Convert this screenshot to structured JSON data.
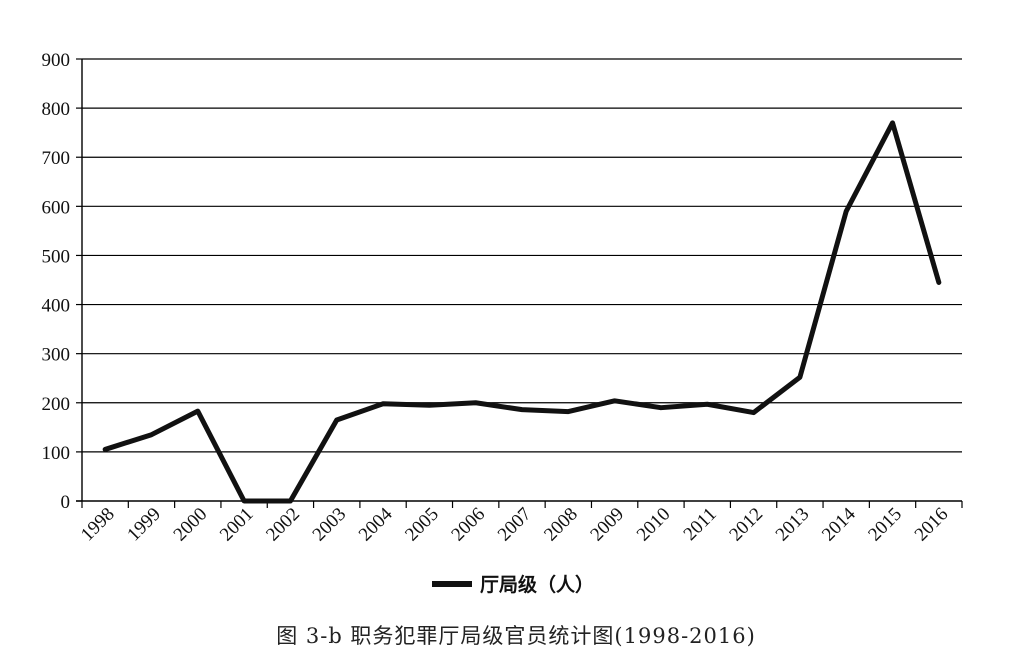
{
  "chart_data": {
    "type": "line",
    "categories": [
      "1998",
      "1999",
      "2000",
      "2001",
      "2002",
      "2003",
      "2004",
      "2005",
      "2006",
      "2007",
      "2008",
      "2009",
      "2010",
      "2011",
      "2012",
      "2013",
      "2014",
      "2015",
      "2016"
    ],
    "series": [
      {
        "name": "厅局级（人）",
        "values": [
          105,
          135,
          183,
          0,
          0,
          165,
          198,
          195,
          200,
          186,
          182,
          204,
          190,
          197,
          180,
          252,
          590,
          770,
          445
        ]
      }
    ],
    "yticks": [
      "0",
      "100",
      "200",
      "300",
      "400",
      "500",
      "600",
      "700",
      "800",
      "900"
    ],
    "ylim": [
      0,
      900
    ],
    "grid": true,
    "legend_position": "bottom",
    "colors": {
      "line": "#111111",
      "grid": "#000000"
    },
    "caption": "图 3-b  职务犯罪厅局级官员统计图(1998-2016)"
  }
}
